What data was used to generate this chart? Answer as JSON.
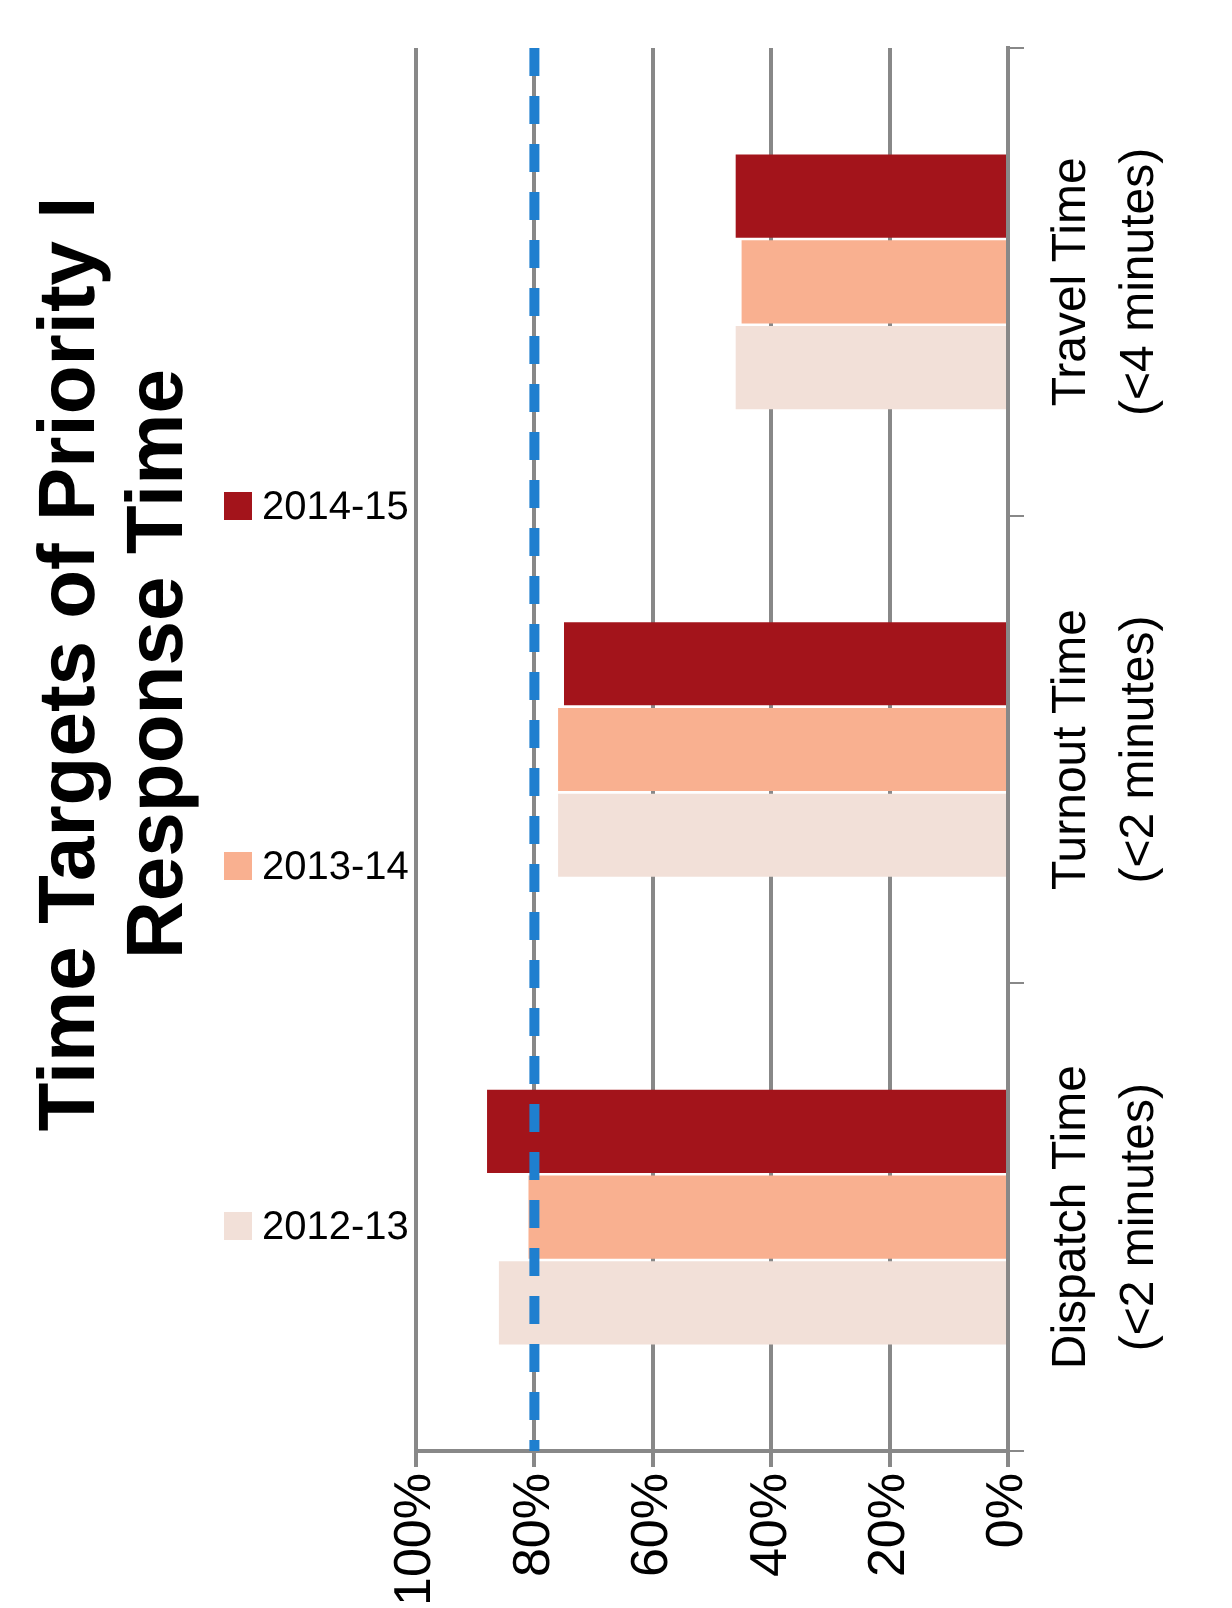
{
  "chart_data": {
    "type": "bar",
    "orientation": "horizontal",
    "title": "Time Targets of Priority I Response Time",
    "categories": [
      "Travel Time (<4 minutes)",
      "Turnout Time (<2 minutes)",
      "Dispatch Time (<2 minutes)"
    ],
    "series": [
      {
        "name": "2014-15",
        "color": "#a3141b",
        "values": [
          46,
          75,
          88
        ]
      },
      {
        "name": "2013-14",
        "color": "#f9b090",
        "values": [
          45,
          76,
          81
        ]
      },
      {
        "name": "2012-13",
        "color": "#f2e0d8",
        "values": [
          46,
          76,
          86
        ]
      }
    ],
    "xlim": [
      100,
      0
    ],
    "xticks": [
      {
        "value": 100,
        "label": "100%"
      },
      {
        "value": 80,
        "label": "80%"
      },
      {
        "value": 60,
        "label": "60%"
      },
      {
        "value": 40,
        "label": "40%"
      },
      {
        "value": 20,
        "label": "20%"
      },
      {
        "value": 0,
        "label": "0%"
      }
    ],
    "ref_lines": [
      {
        "axis": "x",
        "value": 80,
        "color": "#1f7fcf",
        "line_style": "dashed"
      }
    ],
    "grid": "x",
    "legend": "left"
  }
}
